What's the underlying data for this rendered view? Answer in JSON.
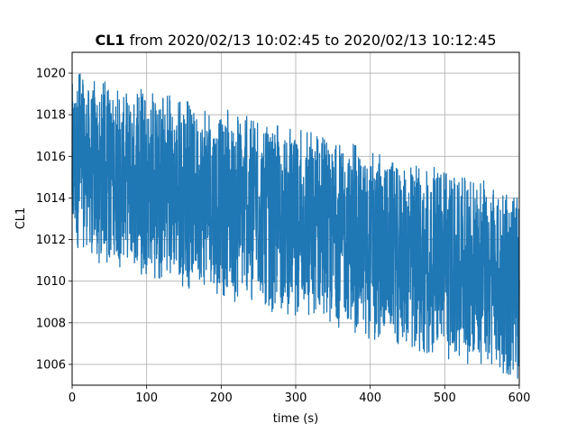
{
  "chart_data": {
    "type": "line",
    "title_bold": "CL1",
    "title_rest": " from 2020/02/13 10:02:45 to 2020/02/13 10:12:45",
    "xlabel": "time (s)",
    "ylabel": "CL1",
    "xlim": [
      0,
      600
    ],
    "ylim": [
      1005,
      1021
    ],
    "xticks": [
      0,
      100,
      200,
      300,
      400,
      500,
      600
    ],
    "yticks": [
      1006,
      1008,
      1010,
      1012,
      1014,
      1016,
      1018,
      1020
    ],
    "grid": true,
    "series": [
      {
        "color": "#1f77b4",
        "envelope": {
          "x": [
            0,
            10,
            20,
            50,
            100,
            150,
            200,
            250,
            300,
            350,
            400,
            450,
            500,
            550,
            580,
            600
          ],
          "upper": [
            1019.5,
            1019.6,
            1019.3,
            1019.0,
            1018.6,
            1018.2,
            1017.8,
            1017.2,
            1016.8,
            1016.3,
            1015.8,
            1015.3,
            1014.8,
            1014.3,
            1013.9,
            1013.8
          ],
          "lower": [
            1011.8,
            1011.5,
            1011.7,
            1011.3,
            1010.8,
            1010.3,
            1009.8,
            1009.3,
            1008.8,
            1008.3,
            1007.8,
            1007.3,
            1006.9,
            1006.4,
            1006.1,
            1005.9
          ]
        },
        "samples_per_second": 4
      }
    ]
  }
}
